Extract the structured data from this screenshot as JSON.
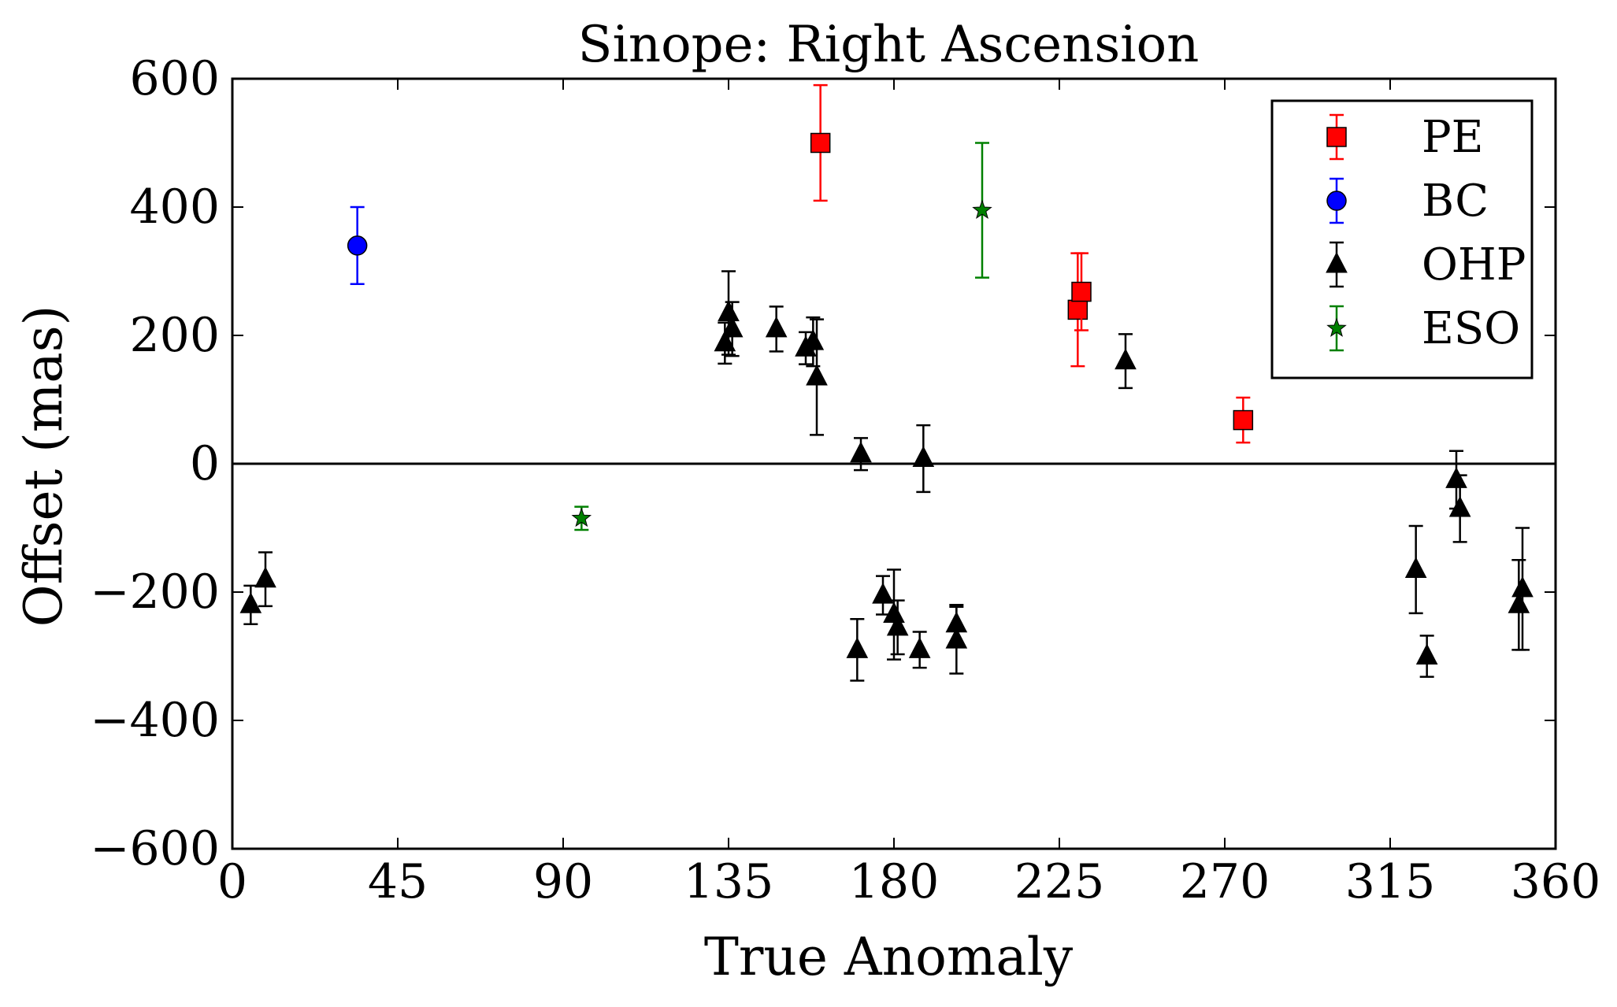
{
  "chart_data": {
    "type": "scatter",
    "title": "Sinope: Right Ascension",
    "xlabel": "True Anomaly",
    "ylabel": "Offset (mas)",
    "xlim": [
      0,
      360
    ],
    "ylim": [
      -600,
      600
    ],
    "xticks": [
      0,
      45,
      90,
      135,
      180,
      225,
      270,
      315,
      360
    ],
    "yticks": [
      -600,
      -400,
      -200,
      0,
      200,
      400,
      600
    ],
    "xtick_labels": [
      "0",
      "45",
      "90",
      "135",
      "180",
      "225",
      "270",
      "315",
      "360"
    ],
    "ytick_labels": [
      "−600",
      "−400",
      "−200",
      "0",
      "200",
      "400",
      "600"
    ],
    "grid": false,
    "zero_line": true,
    "legend_position": "top-right",
    "series": [
      {
        "name": "PE",
        "marker": "square",
        "color": "#ff0000",
        "points": [
          {
            "x": 160,
            "y": 500,
            "yerr": 90
          },
          {
            "x": 230,
            "y": 240,
            "yerr": 88
          },
          {
            "x": 231,
            "y": 268,
            "yerr": 60
          },
          {
            "x": 275,
            "y": 68,
            "yerr": 35
          }
        ]
      },
      {
        "name": "BC",
        "marker": "circle",
        "color": "#0000ff",
        "points": [
          {
            "x": 34,
            "y": 340,
            "yerr": 60
          }
        ]
      },
      {
        "name": "OHP",
        "marker": "triangle",
        "color": "#000000",
        "points": [
          {
            "x": 5,
            "y": -220,
            "yerr": 30
          },
          {
            "x": 9,
            "y": -180,
            "yerr": 42
          },
          {
            "x": 134,
            "y": 188,
            "yerr": 32
          },
          {
            "x": 135,
            "y": 235,
            "yerr": 65
          },
          {
            "x": 136,
            "y": 210,
            "yerr": 42
          },
          {
            "x": 148,
            "y": 210,
            "yerr": 35
          },
          {
            "x": 156,
            "y": 180,
            "yerr": 25
          },
          {
            "x": 158,
            "y": 190,
            "yerr": 38
          },
          {
            "x": 159,
            "y": 135,
            "yerr": 90
          },
          {
            "x": 170,
            "y": -290,
            "yerr": 48
          },
          {
            "x": 171,
            "y": 15,
            "yerr": 25
          },
          {
            "x": 177,
            "y": -205,
            "yerr": 30
          },
          {
            "x": 180,
            "y": -235,
            "yerr": 70
          },
          {
            "x": 181,
            "y": -255,
            "yerr": 42
          },
          {
            "x": 187,
            "y": -290,
            "yerr": 28
          },
          {
            "x": 188,
            "y": 8,
            "yerr": 52
          },
          {
            "x": 197,
            "y": -250,
            "yerr": 30
          },
          {
            "x": 197,
            "y": -275,
            "yerr": 52
          },
          {
            "x": 243,
            "y": 160,
            "yerr": 42
          },
          {
            "x": 322,
            "y": -165,
            "yerr": 68
          },
          {
            "x": 325,
            "y": -300,
            "yerr": 32
          },
          {
            "x": 333,
            "y": -25,
            "yerr": 45
          },
          {
            "x": 334,
            "y": -70,
            "yerr": 52
          },
          {
            "x": 350,
            "y": -220,
            "yerr": 70
          },
          {
            "x": 351,
            "y": -195,
            "yerr": 95
          }
        ]
      },
      {
        "name": "ESO",
        "marker": "star",
        "color": "#008000",
        "points": [
          {
            "x": 95,
            "y": -85,
            "yerr": 18
          },
          {
            "x": 204,
            "y": 395,
            "yerr": 105
          }
        ]
      }
    ]
  }
}
